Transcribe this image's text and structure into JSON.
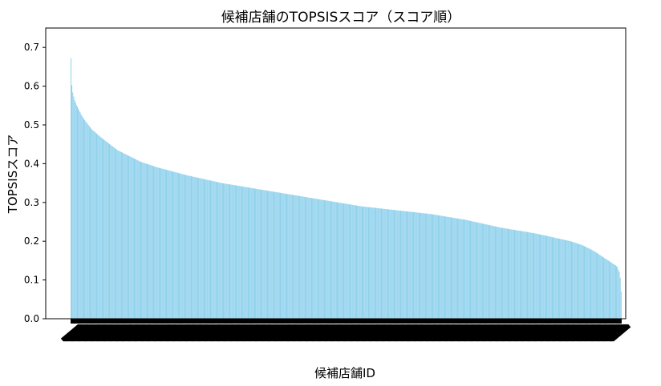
{
  "chart_data": {
    "type": "bar",
    "title": "候補店舗のTOPSISスコア（スコア順）",
    "xlabel": "候補店舗ID",
    "ylabel": "TOPSISスコア",
    "ylim": [
      0.0,
      0.75
    ],
    "yticks": [
      "0.0",
      "0.1",
      "0.2",
      "0.3",
      "0.4",
      "0.5",
      "0.6",
      "0.7"
    ],
    "bar_color": "#87ceeb",
    "sorted": "descending",
    "bar_count": 600,
    "curve_points": [
      [
        0,
        0.672
      ],
      [
        1,
        0.61
      ],
      [
        3,
        0.585
      ],
      [
        6,
        0.565
      ],
      [
        10,
        0.55
      ],
      [
        20,
        0.52
      ],
      [
        35,
        0.49
      ],
      [
        50,
        0.47
      ],
      [
        80,
        0.435
      ],
      [
        120,
        0.405
      ],
      [
        150,
        0.39
      ],
      [
        200,
        0.37
      ],
      [
        260,
        0.35
      ],
      [
        320,
        0.335
      ],
      [
        380,
        0.32
      ],
      [
        440,
        0.305
      ],
      [
        500,
        0.29
      ],
      [
        560,
        0.28
      ],
      [
        620,
        0.27
      ],
      [
        680,
        0.255
      ],
      [
        740,
        0.235
      ],
      [
        800,
        0.22
      ],
      [
        860,
        0.2
      ],
      [
        880,
        0.19
      ],
      [
        900,
        0.175
      ],
      [
        920,
        0.155
      ],
      [
        935,
        0.14
      ],
      [
        940,
        0.135
      ],
      [
        944,
        0.12
      ],
      [
        946,
        0.1
      ],
      [
        947,
        0.07
      ]
    ],
    "curve_x_max": 947,
    "grid": false,
    "legend": "none"
  }
}
